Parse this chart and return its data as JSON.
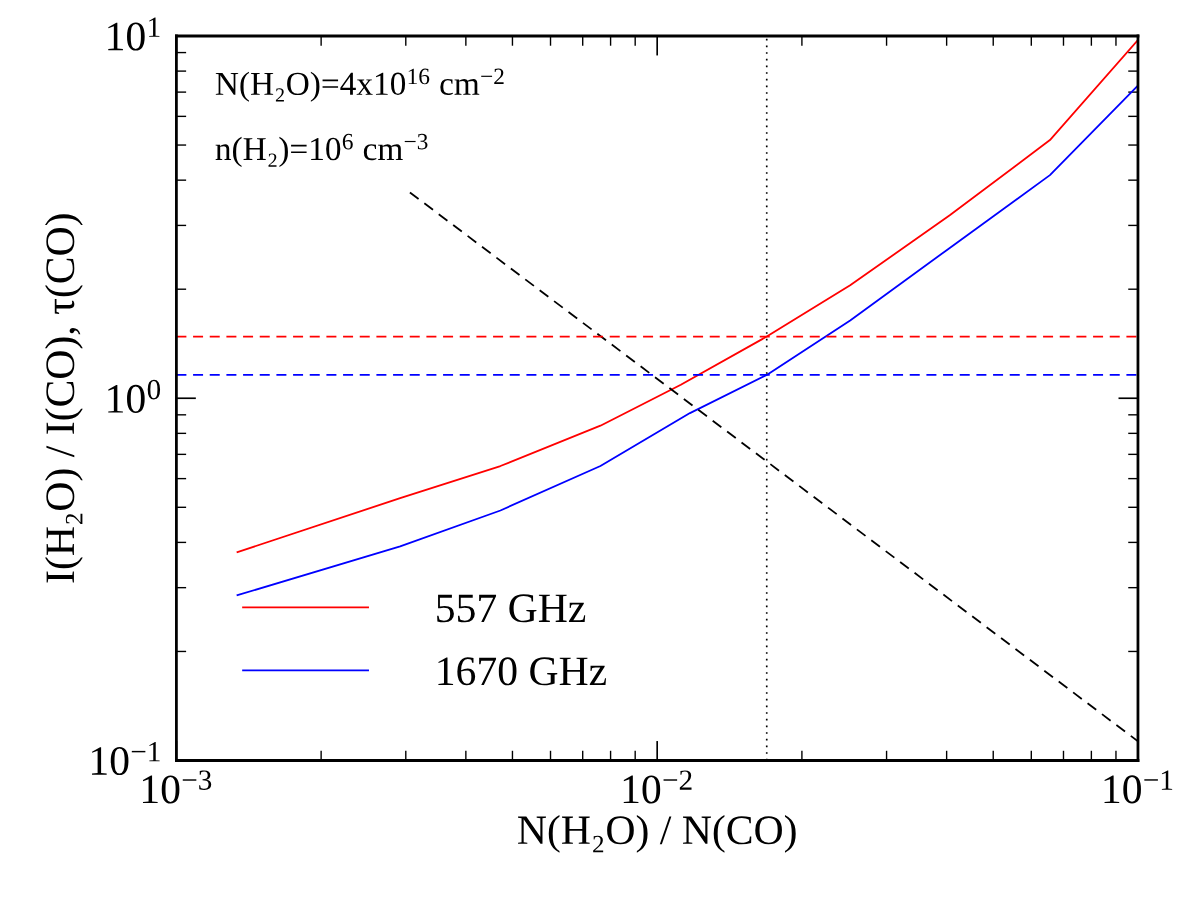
{
  "chart_data": {
    "type": "line",
    "xlabel": "N(H₂O) / N(CO)",
    "ylabel": "I(H₂O) / I(CO), τ(CO)",
    "log": "xy",
    "xlim": [
      0.001,
      0.1
    ],
    "ylim": [
      0.1,
      10
    ],
    "xticks": [
      {
        "value": 0.001,
        "label": "10$^{−3}$"
      },
      {
        "value": 0.01,
        "label": "10$^{−2}$"
      },
      {
        "value": 0.1,
        "label": "10$^{−1}$"
      }
    ],
    "yticks": [
      {
        "value": 0.1,
        "label": "10$^{−1}$"
      },
      {
        "value": 1,
        "label": "10$^{0}$"
      },
      {
        "value": 10,
        "label": "10$^{1}$"
      }
    ],
    "grid": false,
    "legend": "bottom left",
    "series": [
      {
        "name": "557 GHz",
        "color": "#ff0000",
        "line_style": "solid",
        "x": [
          0.00134,
          0.00292,
          0.00472,
          0.00762,
          0.0112,
          0.0169,
          0.0252,
          0.0406,
          0.0656,
          0.1
        ],
        "values": [
          0.376,
          0.53,
          0.65,
          0.84,
          1.09,
          1.48,
          2.05,
          3.2,
          5.16,
          9.75
        ]
      },
      {
        "name": "1670 GHz",
        "color": "#0000ff",
        "line_style": "solid",
        "x": [
          0.00134,
          0.00292,
          0.00472,
          0.00762,
          0.0117,
          0.0169,
          0.0252,
          0.0406,
          0.0656,
          0.1
        ],
        "values": [
          0.286,
          0.39,
          0.49,
          0.65,
          0.91,
          1.16,
          1.64,
          2.6,
          4.13,
          7.3
        ]
      },
      {
        "color": "#000000",
        "line_style": "dashed",
        "x": [
          0.00306,
          0.1
        ],
        "values": [
          3.7,
          0.113
        ]
      }
    ],
    "ref_lines": [
      {
        "axis": "y",
        "value": 1.48,
        "color": "#ff0000",
        "line_style": "dashed"
      },
      {
        "axis": "y",
        "value": 1.16,
        "color": "#0000ff",
        "line_style": "dashed"
      },
      {
        "axis": "x",
        "value": 0.0169,
        "color": "#000000",
        "line_style": "dotted"
      }
    ],
    "annotations": [
      "N(H₂O)=4x10$^{16}$ cm$^{−2}$",
      "n(H₂)=10$^{6}$ cm$^{−3}$"
    ]
  }
}
